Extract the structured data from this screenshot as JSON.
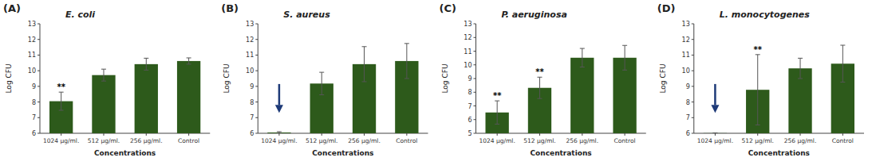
{
  "chart_data": [
    {
      "type": "bar",
      "panel_label": "(A)",
      "title": "E. coli",
      "categories": [
        "1024 μg/ml.",
        "512 μg/ml.",
        "256 μg/ml.",
        "Control"
      ],
      "values": [
        8.05,
        9.72,
        10.42,
        10.62
      ],
      "errors": [
        0.58,
        0.38,
        0.38,
        0.2
      ],
      "color": "#2d5a1b",
      "ylim": [
        6,
        13
      ],
      "yticks": [
        6,
        7,
        8,
        9,
        10,
        11,
        12,
        13
      ],
      "y_label": "Log CFU",
      "x_label": "Concentrations",
      "grid": false,
      "annotations": [
        {
          "text": "**",
          "category": "1024 μg/ml."
        }
      ]
    },
    {
      "type": "bar",
      "panel_label": "(B)",
      "title": "S. aureus",
      "categories": [
        "1024 μg/ml.",
        "512 μg/ml.",
        "256 μg/ml.",
        "Control"
      ],
      "values": [
        6.05,
        9.18,
        10.42,
        10.62
      ],
      "errors": [
        0.05,
        0.72,
        1.12,
        1.12
      ],
      "color": "#2d5a1b",
      "ylim": [
        6,
        13
      ],
      "yticks": [
        6,
        7,
        8,
        9,
        10,
        11,
        12,
        13
      ],
      "y_label": "Log CFU",
      "x_label": "Concentrations",
      "grid": false,
      "annotations": [
        {
          "type": "arrow",
          "category": "1024 μg/ml.",
          "y_from": 9.15,
          "y_to": 7.3,
          "color": "#1e3a78"
        }
      ]
    },
    {
      "type": "bar",
      "panel_label": "(C)",
      "title": "P. aeruginosa",
      "categories": [
        "1024 μg/ml.",
        "512 μg/ml.",
        "256 μg/ml.",
        "Control"
      ],
      "values": [
        6.52,
        8.32,
        10.52,
        10.52
      ],
      "errors": [
        0.85,
        0.78,
        0.68,
        0.9
      ],
      "color": "#2d5a1b",
      "ylim": [
        5,
        13
      ],
      "yticks": [
        5,
        6,
        7,
        8,
        9,
        10,
        11,
        12,
        13
      ],
      "y_label": "Log CFU",
      "x_label": "Concentrations",
      "grid": false,
      "annotations": [
        {
          "text": "**",
          "category": "1024 μg/ml."
        },
        {
          "text": "**",
          "category": "512 μg/ml."
        }
      ]
    },
    {
      "type": "bar",
      "panel_label": "(D)",
      "title": "L. monocytogenes",
      "categories": [
        "1024 μg/ml.",
        "512 μg/ml.",
        "256 μg/ml.",
        "Control"
      ],
      "values": [
        6.01,
        8.78,
        10.15,
        10.45
      ],
      "errors": [
        0.01,
        2.25,
        0.65,
        1.18
      ],
      "color": "#2d5a1b",
      "ylim": [
        6,
        13
      ],
      "yticks": [
        6,
        7,
        8,
        9,
        10,
        11,
        12,
        13
      ],
      "y_label": "Log CFU",
      "x_label": "Concentrations",
      "grid": false,
      "annotations": [
        {
          "text": "**",
          "category": "512 μg/ml."
        },
        {
          "type": "arrow",
          "category": "1024 μg/ml.",
          "y_from": 9.15,
          "y_to": 7.3,
          "color": "#1e3a78"
        }
      ]
    }
  ]
}
